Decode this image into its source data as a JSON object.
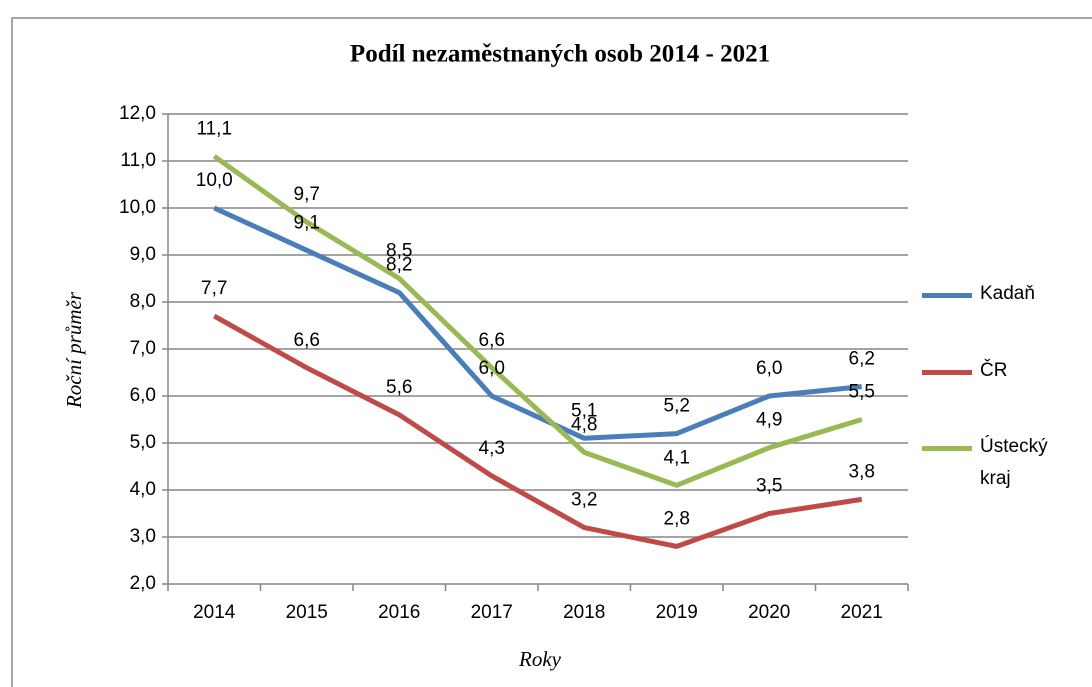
{
  "chart_data": {
    "type": "line",
    "title": "Podíl nezaměstnaných osob 2014 - 2021",
    "x_label": "Roky",
    "y_label": "Roční průměr",
    "categories": [
      "2014",
      "2015",
      "2016",
      "2017",
      "2018",
      "2019",
      "2020",
      "2021"
    ],
    "series": [
      {
        "name": "Kadaň",
        "color": "#4a7ebb",
        "values": [
          10.0,
          9.1,
          8.2,
          6.0,
          5.1,
          5.2,
          6.0,
          6.2
        ],
        "value_labels": [
          "10,0",
          "9,1",
          "8,2",
          "6,0",
          "5,1",
          "5,2",
          "6,0",
          "6,2"
        ]
      },
      {
        "name": "ČR",
        "color": "#be4b48",
        "values": [
          7.7,
          6.6,
          5.6,
          4.3,
          3.2,
          2.8,
          3.5,
          3.8
        ],
        "value_labels": [
          "7,7",
          "6,6",
          "5,6",
          "4,3",
          "3,2",
          "2,8",
          "3,5",
          "3,8"
        ]
      },
      {
        "name": "Ústecký kraj",
        "color": "#98b954",
        "values": [
          11.1,
          9.7,
          8.5,
          6.6,
          4.8,
          4.1,
          4.9,
          5.5
        ],
        "value_labels": [
          "11,1",
          "9,7",
          "8,5",
          "6,6",
          "4,8",
          "4,1",
          "4,9",
          "5,5"
        ]
      }
    ],
    "ylim": [
      2.0,
      12.0
    ],
    "yticks": [
      {
        "value": 2.0,
        "label": "2,0"
      },
      {
        "value": 3.0,
        "label": "3,0"
      },
      {
        "value": 4.0,
        "label": "4,0"
      },
      {
        "value": 5.0,
        "label": "5,0"
      },
      {
        "value": 6.0,
        "label": "6,0"
      },
      {
        "value": 7.0,
        "label": "7,0"
      },
      {
        "value": 8.0,
        "label": "8,0"
      },
      {
        "value": 9.0,
        "label": "9,0"
      },
      {
        "value": 10.0,
        "label": "10,0"
      },
      {
        "value": 11.0,
        "label": "11,0"
      },
      {
        "value": 12.0,
        "label": "12,0"
      }
    ],
    "grid": true,
    "legend": "right"
  }
}
